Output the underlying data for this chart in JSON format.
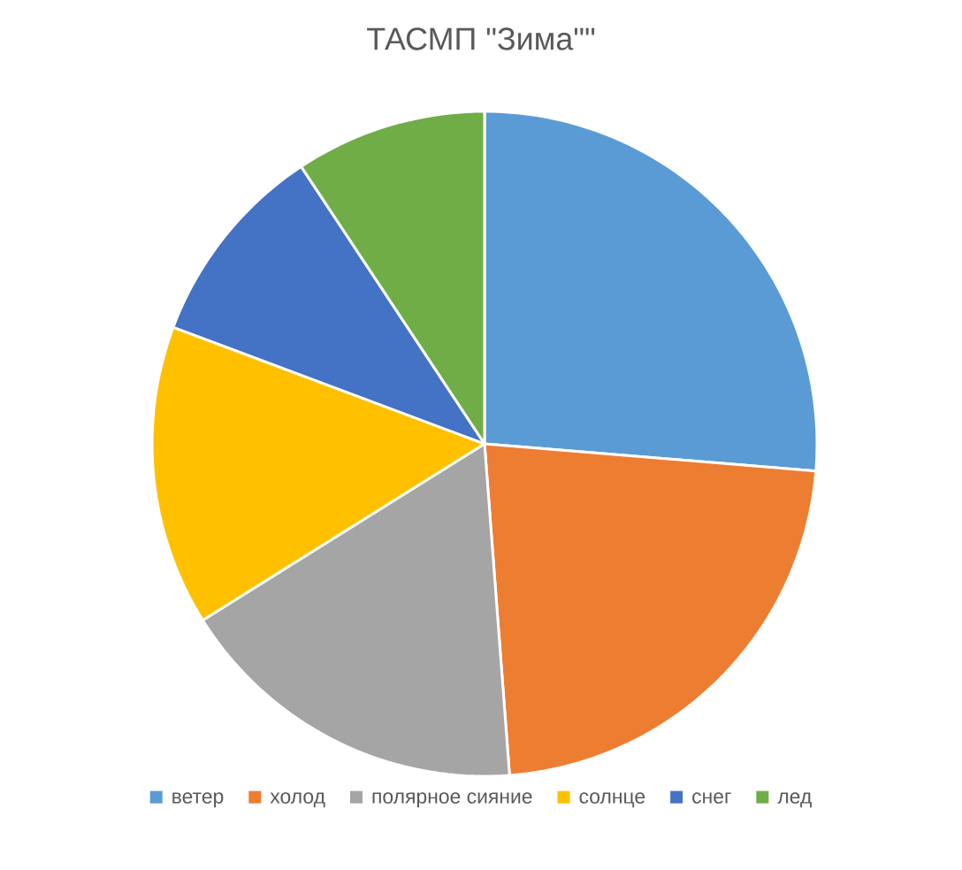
{
  "chart_data": {
    "type": "pie",
    "title": "ТАСМП \"Зима\"\"",
    "categories": [
      "ветер",
      "холод",
      "полярное сияние",
      "солнце",
      "снег",
      "лед"
    ],
    "values": [
      26.3,
      22.5,
      17.3,
      14.6,
      10.0,
      9.3
    ],
    "colors": [
      "#5b9bd5",
      "#ed7d31",
      "#a5a5a5",
      "#ffc000",
      "#4472c4",
      "#70ad47"
    ],
    "legend": "bottom"
  }
}
